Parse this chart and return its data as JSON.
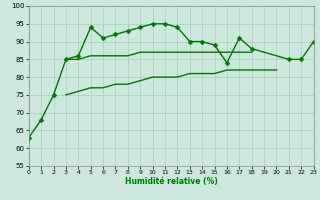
{
  "x": [
    0,
    1,
    2,
    3,
    4,
    5,
    6,
    7,
    8,
    9,
    10,
    11,
    12,
    13,
    14,
    15,
    16,
    17,
    18,
    19,
    20,
    21,
    22,
    23
  ],
  "line1": [
    63,
    68,
    75,
    85,
    86,
    94,
    91,
    92,
    93,
    94,
    95,
    95,
    94,
    90,
    90,
    89,
    84,
    91,
    88,
    null,
    null,
    85,
    85,
    90
  ],
  "line2": [
    null,
    null,
    null,
    85,
    85,
    86,
    86,
    86,
    86,
    87,
    87,
    87,
    87,
    87,
    87,
    87,
    87,
    87,
    87,
    null,
    null,
    null,
    null,
    null
  ],
  "line3": [
    null,
    null,
    null,
    75,
    76,
    77,
    77,
    78,
    78,
    79,
    80,
    80,
    80,
    81,
    81,
    81,
    82,
    82,
    82,
    82,
    82,
    null,
    null,
    null
  ],
  "background_color": "#cce8dc",
  "grid_color": "#aaccbb",
  "line_color": "#007700",
  "marker": "D",
  "marker_size": 2.5,
  "xlabel": "Humidité relative (%)",
  "ylim": [
    55,
    100
  ],
  "xlim": [
    0,
    23
  ],
  "yticks": [
    55,
    60,
    65,
    70,
    75,
    80,
    85,
    90,
    95,
    100
  ],
  "xticks": [
    0,
    1,
    2,
    3,
    4,
    5,
    6,
    7,
    8,
    9,
    10,
    11,
    12,
    13,
    14,
    15,
    16,
    17,
    18,
    19,
    20,
    21,
    22,
    23
  ]
}
